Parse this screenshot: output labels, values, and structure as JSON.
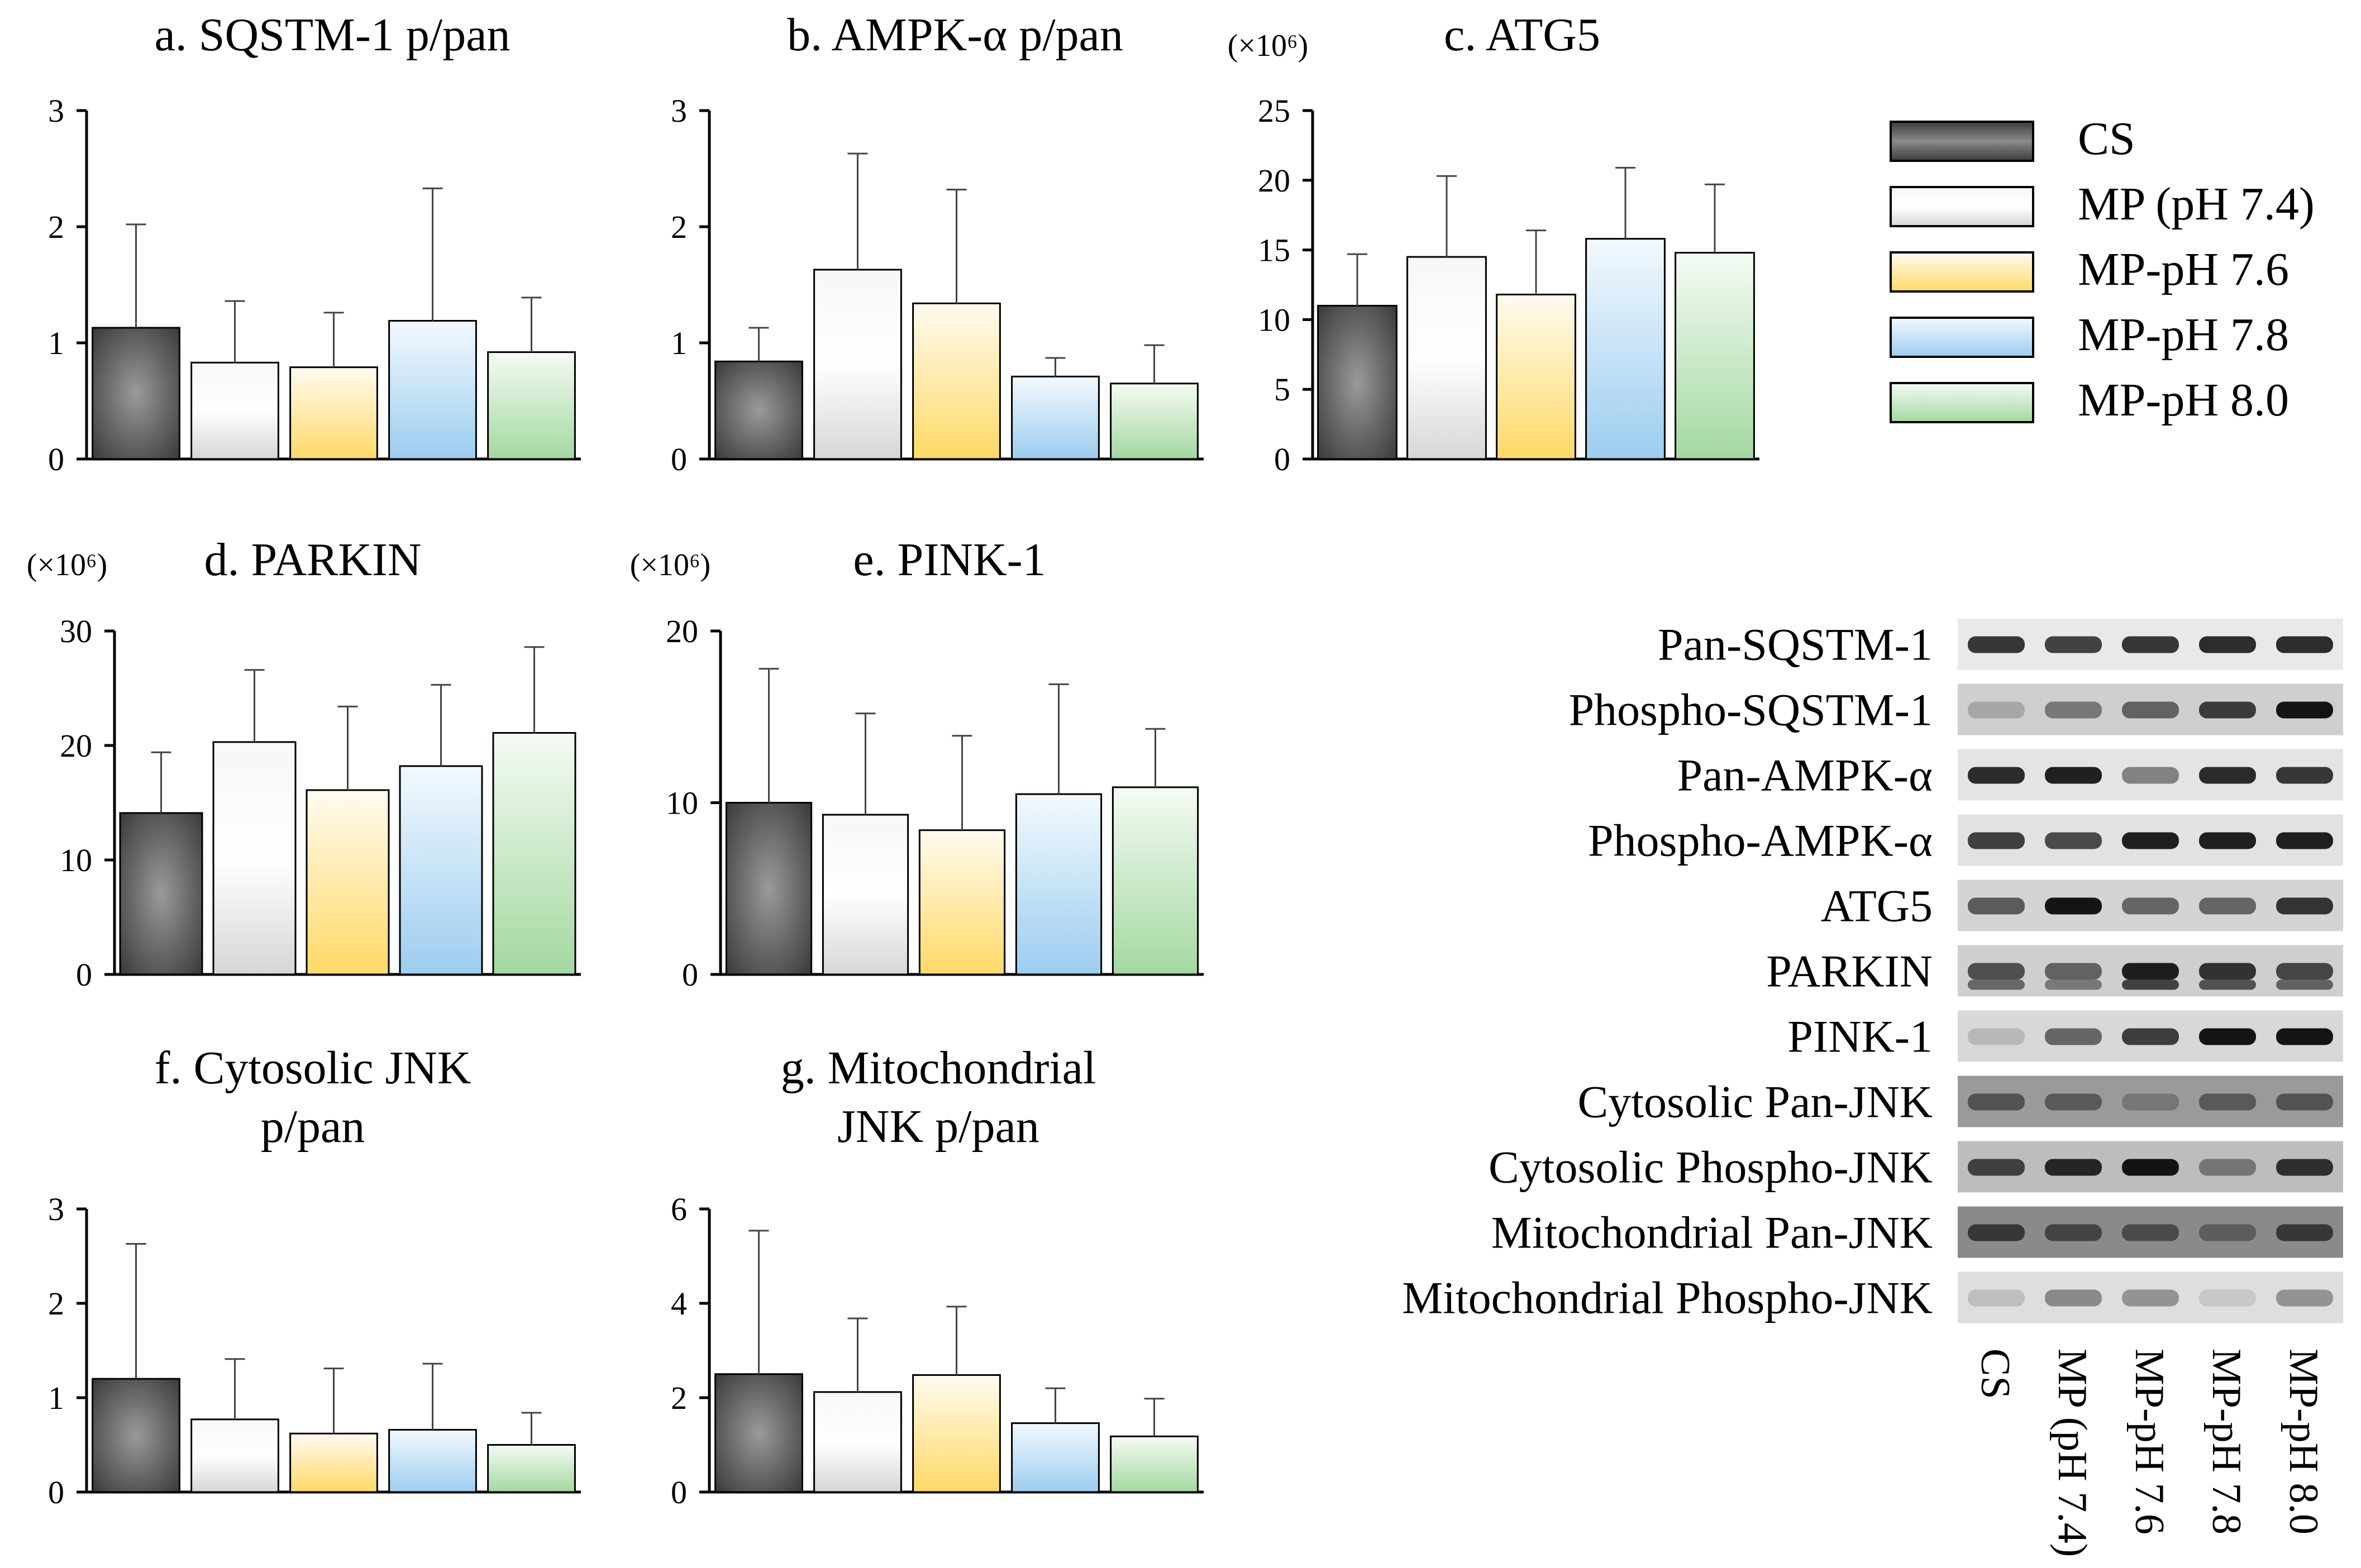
{
  "colors": {
    "CS": "#5e5e5e",
    "MP (pH 7.4)": "#e6e6e6",
    "MP-pH 7.6": "#ffe18a",
    "MP-pH 7.8": "#a9d5f2",
    "MP-pH 8.0": "#b4e0b2"
  },
  "legend": [
    "CS",
    "MP (pH 7.4)",
    "MP-pH 7.6",
    "MP-pH 7.8",
    "MP-pH 8.0"
  ],
  "chart_data": [
    {
      "id": "a",
      "type": "bar",
      "title": "a. SQSTM-1 p/pan",
      "unit": "",
      "categories": [
        "CS",
        "MP (pH 7.4)",
        "MP-pH 7.6",
        "MP-pH 7.8",
        "MP-pH 8.0"
      ],
      "values": [
        1.13,
        0.83,
        0.79,
        1.19,
        0.92
      ],
      "errors": [
        0.89,
        0.53,
        0.47,
        1.14,
        0.47
      ],
      "ylim": [
        0,
        3
      ],
      "yticks": [
        "0",
        "1",
        "2",
        "3"
      ]
    },
    {
      "id": "b",
      "type": "bar",
      "title": "b. AMPK-α p/pan",
      "unit": "",
      "categories": [
        "CS",
        "MP (pH 7.4)",
        "MP-pH 7.6",
        "MP-pH 7.8",
        "MP-pH 8.0"
      ],
      "values": [
        0.84,
        1.63,
        1.34,
        0.71,
        0.65
      ],
      "errors": [
        0.29,
        1.0,
        0.98,
        0.16,
        0.33
      ],
      "ylim": [
        0,
        3
      ],
      "yticks": [
        "0",
        "1",
        "2",
        "3"
      ]
    },
    {
      "id": "c",
      "type": "bar",
      "title": "c. ATG5",
      "unit": "(×10⁶)",
      "categories": [
        "CS",
        "MP (pH 7.4)",
        "MP-pH 7.6",
        "MP-pH 7.8",
        "MP-pH 8.0"
      ],
      "values": [
        11.0,
        14.5,
        11.8,
        15.8,
        14.8
      ],
      "errors": [
        3.7,
        5.8,
        4.6,
        5.1,
        4.9
      ],
      "ylim": [
        0,
        25
      ],
      "yticks": [
        "0",
        "5",
        "10",
        "15",
        "20",
        "25"
      ]
    },
    {
      "id": "d",
      "type": "bar",
      "title": "d. PARKIN",
      "unit": "(×10⁶)",
      "categories": [
        "CS",
        "MP (pH 7.4)",
        "MP-pH 7.6",
        "MP-pH 7.8",
        "MP-pH 8.0"
      ],
      "values": [
        14.1,
        20.3,
        16.1,
        18.2,
        21.1
      ],
      "errors": [
        5.3,
        6.3,
        7.3,
        7.1,
        7.5
      ],
      "ylim": [
        0,
        30
      ],
      "yticks": [
        "0",
        "10",
        "20",
        "30"
      ]
    },
    {
      "id": "e",
      "type": "bar",
      "title": "e. PINK-1",
      "unit": "(×10⁶)",
      "categories": [
        "CS",
        "MP (pH 7.4)",
        "MP-pH 7.6",
        "MP-pH 7.8",
        "MP-pH 8.0"
      ],
      "values": [
        10.0,
        9.3,
        8.4,
        10.5,
        10.9
      ],
      "errors": [
        7.8,
        5.9,
        5.5,
        6.4,
        3.4
      ],
      "ylim": [
        0,
        20
      ],
      "yticks": [
        "0",
        "10",
        "20"
      ]
    },
    {
      "id": "f",
      "type": "bar",
      "title": "f. Cytosolic JNK p/pan",
      "unit": "",
      "categories": [
        "CS",
        "MP (pH 7.4)",
        "MP-pH 7.6",
        "MP-pH 7.8",
        "MP-pH 8.0"
      ],
      "values": [
        1.2,
        0.77,
        0.62,
        0.66,
        0.5
      ],
      "errors": [
        1.43,
        0.64,
        0.69,
        0.7,
        0.34
      ],
      "ylim": [
        0,
        3
      ],
      "yticks": [
        "0",
        "1",
        "2",
        "3"
      ]
    },
    {
      "id": "g",
      "type": "bar",
      "title": "g. Mitochondrial JNK p/pan",
      "unit": "",
      "categories": [
        "CS",
        "MP (pH 7.4)",
        "MP-pH 7.6",
        "MP-pH 7.8",
        "MP-pH 8.0"
      ],
      "values": [
        2.5,
        2.12,
        2.48,
        1.46,
        1.18
      ],
      "errors": [
        3.04,
        1.56,
        1.45,
        0.74,
        0.8
      ],
      "ylim": [
        0,
        6
      ],
      "yticks": [
        "0",
        "2",
        "4",
        "6"
      ]
    }
  ],
  "blot": {
    "rows": [
      "Pan-SQSTM-1",
      "Phospho-SQSTM-1",
      "Pan-AMPK-α",
      "Phospho-AMPK-α",
      "ATG5",
      "PARKIN",
      "PINK-1",
      "Cytosolic Pan-JNK",
      "Cytosolic Phospho-JNK",
      "Mitochondrial Pan-JNK",
      "Mitochondrial Phospho-JNK"
    ],
    "lanes": [
      "CS",
      "MP (pH 7.4)",
      "MP-pH 7.6",
      "MP-pH 7.8",
      "MP-pH 8.0"
    ]
  }
}
